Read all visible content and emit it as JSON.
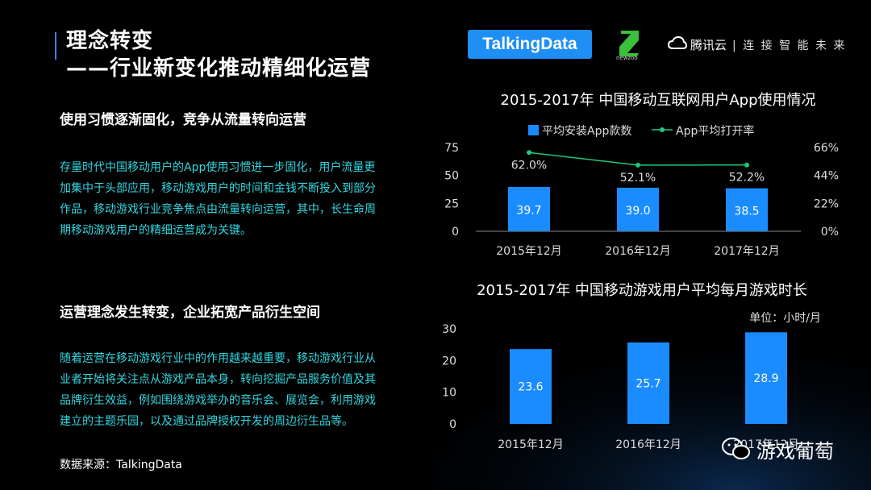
{
  "slide": {
    "title_line1": "理念转变",
    "title_line2": "——行业新变化推动精细化运营",
    "section1": {
      "heading": "使用习惯逐渐固化，竞争从流量转向运营",
      "lines": [
        "存量时代中国移动用户的App使用习惯进一步固化，用户流量更",
        "加集中于头部应用，移动游戏用户的时间和金钱不断投入到部分",
        "作品，移动游戏行业竞争焦点由流量转向运营，其中，长生命周",
        "期移动游戏用户的精细运营成为关键。"
      ]
    },
    "section2": {
      "heading": "运营理念发生转变，企业拓宽产品衍生空间",
      "lines": [
        "随着运营在移动游戏行业中的作用越来越重要，移动游戏行业从",
        "业者开始将关注点从游戏产品本身，转向挖掘产品服务价值及其",
        "品牌衍生效益，例如围绕游戏举办的音乐会、展览会，利用游戏",
        "建立的主题乐园，以及通过品牌授权开发的周边衍生品等。"
      ]
    },
    "source": "数据来源：TalkingData"
  },
  "logos": {
    "talkingdata": "TalkingData",
    "newzoo": "newzoo",
    "tencent_cloud": "腾讯云",
    "slogan": "| 连 接 智 能 未 来"
  },
  "watermark": "游戏葡萄",
  "colors": {
    "bar": "#1a8cff",
    "line": "#1ec97a",
    "accent_text": "#33d6e0"
  },
  "chart_data": [
    {
      "type": "bar",
      "title": "2015-2017年 中国移动互联网用户App使用情况",
      "categories": [
        "2015年12月",
        "2016年12月",
        "2017年12月"
      ],
      "series": [
        {
          "name": "平均安装App款数",
          "type": "bar",
          "values": [
            39.7,
            39.0,
            38.5
          ],
          "value_labels": [
            "39.7",
            "39.0",
            "38.5"
          ]
        },
        {
          "name": "App平均打开率",
          "type": "line",
          "axis": "right",
          "values": [
            62.0,
            52.1,
            52.2
          ],
          "value_labels": [
            "62.0%",
            "52.1%",
            "52.2%"
          ]
        }
      ],
      "y_ticks": [
        "0",
        "25",
        "50",
        "75"
      ],
      "y_tick_values": [
        0,
        25,
        50,
        75
      ],
      "ylim": [
        0,
        75
      ],
      "y2_ticks": [
        "0%",
        "22%",
        "44%",
        "66%"
      ],
      "y2_tick_values": [
        0,
        22,
        44,
        66
      ],
      "y2lim": [
        0,
        66
      ],
      "legend_position": "top",
      "grid": false
    },
    {
      "type": "bar",
      "title": "2015-2017年  中国移动游戏用户平均每月游戏时长",
      "unit_label": "单位：小时/月",
      "categories": [
        "2015年12月",
        "2016年12月",
        "2017年12月"
      ],
      "values": [
        23.6,
        25.7,
        28.9
      ],
      "value_labels": [
        "23.6",
        "25.7",
        "28.9"
      ],
      "y_ticks": [
        "0",
        "10",
        "20",
        "30"
      ],
      "y_tick_values": [
        0,
        10,
        20,
        30
      ],
      "ylim": [
        0,
        30
      ],
      "grid": false
    }
  ]
}
